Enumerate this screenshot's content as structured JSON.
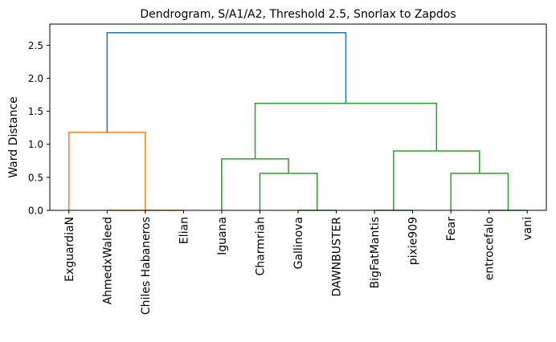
{
  "chart_data": {
    "type": "dendrogram",
    "title": "Dendrogram, S/A1/A2, Threshold 2.5, Snorlax to Zapdos",
    "xlabel": "",
    "ylabel": "Ward Distance",
    "ylim": [
      0,
      2.82
    ],
    "yticks": [
      "0.0",
      "0.5",
      "1.0",
      "1.5",
      "2.0",
      "2.5"
    ],
    "leaves": [
      "ExguardiaN",
      "AhmedxWaleed",
      "Chiles Habaneros",
      "Elian",
      "Iguana",
      "Charmriah",
      "Gallinova",
      "DAWNBUSTER",
      "BigFatMantis",
      "pixie909",
      "Fear",
      "entrocefalo",
      "vani"
    ],
    "links": [
      {
        "left": 1.0,
        "right": 2.0,
        "left_height": 0.0,
        "right_height": 0.0,
        "height": 0.0,
        "color": "#ff7f0e"
      },
      {
        "left": 2.0,
        "right": 3.0,
        "left_height": 0.0,
        "right_height": 0.0,
        "height": 0.0,
        "color": "#ff7f0e"
      },
      {
        "left": 0.0,
        "right": 2.0,
        "left_height": 0.0,
        "right_height": 0.0,
        "height": 1.18,
        "color": "#ff7f0e"
      },
      {
        "left": 6.0,
        "right": 7.0,
        "left_height": 0.0,
        "right_height": 0.0,
        "height": 0.0,
        "color": "#2ca02c"
      },
      {
        "left": 5.0,
        "right": 6.5,
        "left_height": 0.0,
        "right_height": 0.0,
        "height": 0.56,
        "color": "#2ca02c"
      },
      {
        "left": 4.0,
        "right": 5.75,
        "left_height": 0.0,
        "right_height": 0.56,
        "height": 0.78,
        "color": "#2ca02c"
      },
      {
        "left": 8.0,
        "right": 9.0,
        "left_height": 0.0,
        "right_height": 0.0,
        "height": 0.0,
        "color": "#2ca02c"
      },
      {
        "left": 11.0,
        "right": 12.0,
        "left_height": 0.0,
        "right_height": 0.0,
        "height": 0.0,
        "color": "#2ca02c"
      },
      {
        "left": 10.0,
        "right": 11.5,
        "left_height": 0.0,
        "right_height": 0.0,
        "height": 0.56,
        "color": "#2ca02c"
      },
      {
        "left": 8.5,
        "right": 10.75,
        "left_height": 0.0,
        "right_height": 0.56,
        "height": 0.9,
        "color": "#2ca02c"
      },
      {
        "left": 4.875,
        "right": 9.625,
        "left_height": 0.78,
        "right_height": 0.9,
        "height": 1.62,
        "color": "#2ca02c"
      },
      {
        "left": 1.0,
        "right": 7.25,
        "left_height": 1.18,
        "right_height": 1.62,
        "height": 2.69,
        "color": "#1f77b4"
      }
    ],
    "colors": {
      "cluster1": "#ff7f0e",
      "cluster2": "#2ca02c",
      "above_threshold": "#1f77b4"
    }
  }
}
